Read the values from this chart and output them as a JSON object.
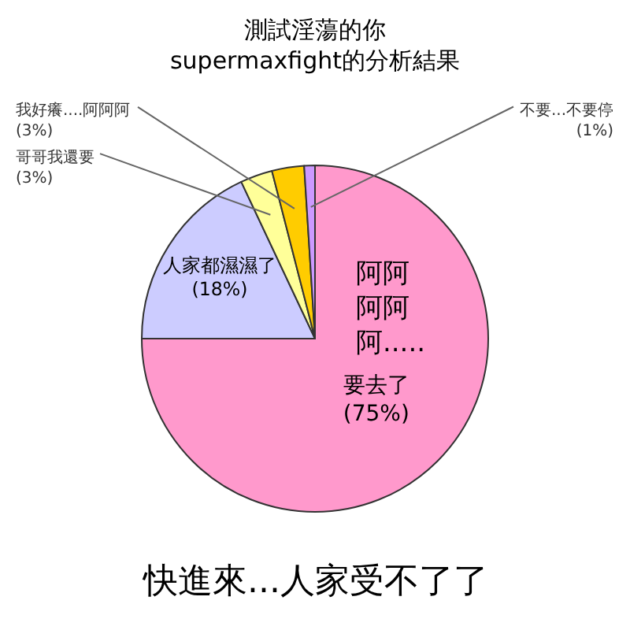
{
  "chart_data": {
    "type": "pie",
    "title": "測試淫蕩的你\nsupermaxfight的分析結果",
    "categories": [
      "要去了",
      "人家都濕濕了",
      "哥哥我還要",
      "我好癢....阿阿阿",
      "不要...不要停"
    ],
    "values": [
      75,
      18,
      3,
      3,
      1
    ],
    "value_labels": [
      "(75%)",
      "(18%)",
      "(3%)",
      "(3%)",
      "(1%)"
    ],
    "colors": [
      "#ff99cc",
      "#ccccff",
      "#ffff99",
      "#ffcc00",
      "#cc99ff"
    ],
    "annotations": [
      "阿阿阿阿阿.....",
      "快進來...人家受不了了"
    ],
    "legend": false
  }
}
